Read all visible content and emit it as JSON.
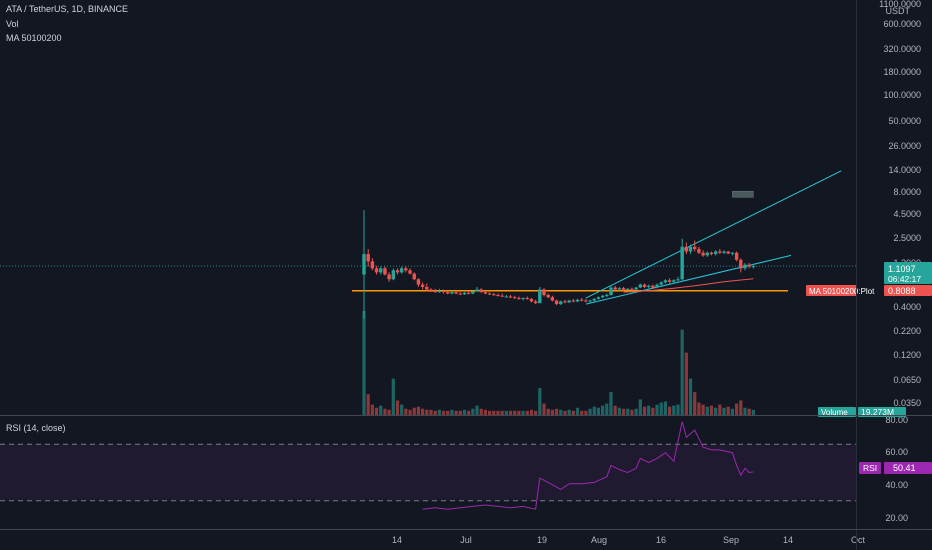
{
  "header": {
    "symbol": "ATA / TetherUS, 1D, BINANCE",
    "vol_label": "Vol",
    "ma_label": "MA 50100200"
  },
  "rsi_legend": "RSI (14, close)",
  "price_axis": {
    "currency": "USDT",
    "ticks": [
      "1100.0000",
      "600.0000",
      "320.0000",
      "180.0000",
      "100.0000",
      "50.0000",
      "26.0000",
      "14.0000",
      "8.0000",
      "4.5000",
      "2.5000",
      "1.2000",
      "0.4000",
      "0.2200",
      "0.1200",
      "0.0650",
      "0.0350"
    ]
  },
  "badges": {
    "price_value": "1.1097",
    "price_countdown": "06:42:17",
    "ma_name": "MA 50100200:Plot",
    "ma_value": "0.8088",
    "volume_name": "Volume",
    "volume_value": "19.273M",
    "rsi_name": "RSI",
    "rsi_value": "50.41"
  },
  "rsi_axis": {
    "ticks": [
      "80.00",
      "60.00",
      "40.00",
      "20.00"
    ]
  },
  "time_axis": {
    "ticks": [
      "14",
      "Jul",
      "19",
      "Aug",
      "16",
      "Sep",
      "14",
      "Oct"
    ]
  },
  "colors": {
    "background": "#131722",
    "up": "#26a69a",
    "down": "#ef5350",
    "trendline": "#26c6da",
    "support": "#ff9800",
    "ma": "#ef5350",
    "rsi_line": "#9c27b0",
    "rsi_band": "#2a1e3d"
  },
  "chart_data": {
    "type": "candlestick",
    "price_scale": "log",
    "x_domain": [
      "2021-06-09",
      "2021-10-05"
    ],
    "ohlc": [
      [
        "2021-06-09",
        0.9,
        4.5,
        0.3,
        1.5
      ],
      [
        "2021-06-10",
        1.5,
        1.7,
        1.1,
        1.25
      ],
      [
        "2021-06-11",
        1.25,
        1.35,
        1.0,
        1.05
      ],
      [
        "2021-06-12",
        1.05,
        1.12,
        0.9,
        0.95
      ],
      [
        "2021-06-13",
        0.95,
        1.1,
        0.9,
        1.05
      ],
      [
        "2021-06-14",
        1.05,
        1.1,
        0.88,
        0.9
      ],
      [
        "2021-06-15",
        0.9,
        0.95,
        0.75,
        0.8
      ],
      [
        "2021-06-16",
        0.8,
        1.05,
        0.78,
        1.0
      ],
      [
        "2021-06-17",
        1.0,
        1.05,
        0.9,
        0.95
      ],
      [
        "2021-06-18",
        0.95,
        1.1,
        0.92,
        1.05
      ],
      [
        "2021-06-19",
        1.05,
        1.1,
        0.95,
        1.0
      ],
      [
        "2021-06-20",
        1.0,
        1.05,
        0.9,
        0.92
      ],
      [
        "2021-06-21",
        0.92,
        0.95,
        0.78,
        0.8
      ],
      [
        "2021-06-22",
        0.8,
        0.82,
        0.66,
        0.7
      ],
      [
        "2021-06-23",
        0.7,
        0.74,
        0.62,
        0.66
      ],
      [
        "2021-06-24",
        0.66,
        0.72,
        0.6,
        0.62
      ],
      [
        "2021-06-25",
        0.62,
        0.64,
        0.58,
        0.6
      ],
      [
        "2021-06-26",
        0.6,
        0.63,
        0.57,
        0.58
      ],
      [
        "2021-06-27",
        0.58,
        0.63,
        0.57,
        0.6
      ],
      [
        "2021-06-28",
        0.6,
        0.62,
        0.56,
        0.58
      ],
      [
        "2021-06-29",
        0.58,
        0.6,
        0.55,
        0.56
      ],
      [
        "2021-06-30",
        0.56,
        0.6,
        0.55,
        0.58
      ],
      [
        "2021-07-01",
        0.58,
        0.6,
        0.55,
        0.56
      ],
      [
        "2021-07-02",
        0.56,
        0.58,
        0.54,
        0.55
      ],
      [
        "2021-07-03",
        0.55,
        0.58,
        0.54,
        0.57
      ],
      [
        "2021-07-04",
        0.57,
        0.6,
        0.55,
        0.56
      ],
      [
        "2021-07-05",
        0.56,
        0.6,
        0.55,
        0.59
      ],
      [
        "2021-07-06",
        0.59,
        0.66,
        0.58,
        0.62
      ],
      [
        "2021-07-07",
        0.62,
        0.64,
        0.57,
        0.58
      ],
      [
        "2021-07-08",
        0.58,
        0.6,
        0.55,
        0.56
      ],
      [
        "2021-07-09",
        0.56,
        0.58,
        0.54,
        0.55
      ],
      [
        "2021-07-10",
        0.55,
        0.57,
        0.53,
        0.54
      ],
      [
        "2021-07-11",
        0.54,
        0.56,
        0.52,
        0.53
      ],
      [
        "2021-07-12",
        0.53,
        0.56,
        0.52,
        0.52
      ],
      [
        "2021-07-13",
        0.52,
        0.54,
        0.51,
        0.52
      ],
      [
        "2021-07-14",
        0.52,
        0.54,
        0.5,
        0.51
      ],
      [
        "2021-07-15",
        0.51,
        0.53,
        0.49,
        0.5
      ],
      [
        "2021-07-16",
        0.5,
        0.52,
        0.48,
        0.49
      ],
      [
        "2021-07-17",
        0.49,
        0.51,
        0.47,
        0.5
      ],
      [
        "2021-07-18",
        0.5,
        0.52,
        0.48,
        0.49
      ],
      [
        "2021-07-19",
        0.49,
        0.5,
        0.45,
        0.46
      ],
      [
        "2021-07-20",
        0.46,
        0.48,
        0.43,
        0.44
      ],
      [
        "2021-07-21",
        0.44,
        0.66,
        0.44,
        0.62
      ],
      [
        "2021-07-22",
        0.62,
        0.64,
        0.52,
        0.54
      ],
      [
        "2021-07-23",
        0.54,
        0.56,
        0.5,
        0.51
      ],
      [
        "2021-07-24",
        0.51,
        0.53,
        0.46,
        0.47
      ],
      [
        "2021-07-25",
        0.47,
        0.48,
        0.42,
        0.43
      ],
      [
        "2021-07-26",
        0.43,
        0.47,
        0.42,
        0.46
      ],
      [
        "2021-07-27",
        0.46,
        0.48,
        0.44,
        0.45
      ],
      [
        "2021-07-28",
        0.45,
        0.48,
        0.44,
        0.47
      ],
      [
        "2021-07-29",
        0.47,
        0.49,
        0.45,
        0.46
      ],
      [
        "2021-07-30",
        0.46,
        0.49,
        0.45,
        0.48
      ],
      [
        "2021-07-31",
        0.48,
        0.5,
        0.46,
        0.47
      ],
      [
        "2021-08-01",
        0.47,
        0.49,
        0.45,
        0.46
      ],
      [
        "2021-08-02",
        0.46,
        0.48,
        0.44,
        0.47
      ],
      [
        "2021-08-03",
        0.47,
        0.5,
        0.46,
        0.49
      ],
      [
        "2021-08-04",
        0.49,
        0.52,
        0.48,
        0.51
      ],
      [
        "2021-08-05",
        0.51,
        0.54,
        0.5,
        0.53
      ],
      [
        "2021-08-06",
        0.53,
        0.56,
        0.51,
        0.54
      ],
      [
        "2021-08-07",
        0.54,
        0.68,
        0.53,
        0.65
      ],
      [
        "2021-08-08",
        0.65,
        0.68,
        0.6,
        0.62
      ],
      [
        "2021-08-09",
        0.62,
        0.66,
        0.6,
        0.64
      ],
      [
        "2021-08-10",
        0.64,
        0.66,
        0.6,
        0.61
      ],
      [
        "2021-08-11",
        0.61,
        0.64,
        0.6,
        0.63
      ],
      [
        "2021-08-12",
        0.63,
        0.65,
        0.6,
        0.62
      ],
      [
        "2021-08-13",
        0.62,
        0.66,
        0.61,
        0.65
      ],
      [
        "2021-08-14",
        0.65,
        0.72,
        0.64,
        0.7
      ],
      [
        "2021-08-15",
        0.7,
        0.72,
        0.64,
        0.66
      ],
      [
        "2021-08-16",
        0.66,
        0.7,
        0.64,
        0.68
      ],
      [
        "2021-08-17",
        0.68,
        0.7,
        0.63,
        0.65
      ],
      [
        "2021-08-18",
        0.65,
        0.72,
        0.64,
        0.7
      ],
      [
        "2021-08-19",
        0.7,
        0.76,
        0.68,
        0.74
      ],
      [
        "2021-08-20",
        0.74,
        0.8,
        0.72,
        0.78
      ],
      [
        "2021-08-21",
        0.78,
        0.82,
        0.72,
        0.75
      ],
      [
        "2021-08-22",
        0.75,
        0.8,
        0.73,
        0.78
      ],
      [
        "2021-08-23",
        0.78,
        0.85,
        0.76,
        0.8
      ],
      [
        "2021-08-24",
        0.8,
        2.2,
        0.78,
        1.8
      ],
      [
        "2021-08-25",
        1.8,
        2.0,
        1.5,
        1.6
      ],
      [
        "2021-08-26",
        1.6,
        1.9,
        1.5,
        1.8
      ],
      [
        "2021-08-27",
        1.8,
        2.1,
        1.6,
        1.7
      ],
      [
        "2021-08-28",
        1.7,
        1.8,
        1.5,
        1.55
      ],
      [
        "2021-08-29",
        1.55,
        1.65,
        1.4,
        1.45
      ],
      [
        "2021-08-30",
        1.45,
        1.6,
        1.4,
        1.55
      ],
      [
        "2021-08-31",
        1.55,
        1.6,
        1.45,
        1.5
      ],
      [
        "2021-09-01",
        1.5,
        1.65,
        1.45,
        1.6
      ],
      [
        "2021-09-02",
        1.6,
        1.7,
        1.5,
        1.55
      ],
      [
        "2021-09-03",
        1.55,
        1.65,
        1.5,
        1.6
      ],
      [
        "2021-09-04",
        1.6,
        1.62,
        1.5,
        1.52
      ],
      [
        "2021-09-05",
        1.52,
        1.58,
        1.45,
        1.55
      ],
      [
        "2021-09-06",
        1.55,
        1.6,
        1.25,
        1.3
      ],
      [
        "2021-09-07",
        1.3,
        1.35,
        0.95,
        1.05
      ],
      [
        "2021-09-08",
        1.05,
        1.2,
        1.0,
        1.15
      ],
      [
        "2021-09-09",
        1.15,
        1.2,
        1.05,
        1.1
      ],
      [
        "2021-09-10",
        1.1,
        1.18,
        1.05,
        1.1097
      ]
    ],
    "volume": [
      [
        0.0,
        1
      ],
      [
        0.0,
        0
      ],
      [
        0.0,
        0
      ],
      [
        0.0,
        0
      ],
      [
        0.0,
        1
      ],
      [
        0.0,
        0
      ],
      [
        0.0,
        0
      ],
      [
        0.0,
        1
      ],
      [
        0.0,
        0
      ],
      [
        0.0,
        1
      ],
      [
        0.0,
        0
      ],
      [
        0.0,
        0
      ],
      [
        0.0,
        0
      ],
      [
        0.0,
        0
      ],
      [
        0.0,
        0
      ],
      [
        0.0,
        0
      ],
      [
        0.0,
        0
      ],
      [
        0.0,
        0
      ],
      [
        0.0,
        1
      ],
      [
        0.0,
        0
      ],
      [
        0.0,
        0
      ],
      [
        0.0,
        1
      ],
      [
        0.0,
        0
      ],
      [
        0.0,
        0
      ],
      [
        0.0,
        1
      ],
      [
        0.0,
        0
      ],
      [
        0.0,
        1
      ],
      [
        0.0,
        1
      ],
      [
        0.0,
        0
      ],
      [
        0.0,
        0
      ],
      [
        0.0,
        0
      ],
      [
        0.0,
        0
      ],
      [
        0.0,
        0
      ],
      [
        0.0,
        0
      ],
      [
        0.0,
        1
      ],
      [
        0.0,
        0
      ],
      [
        0.0,
        0
      ],
      [
        0.0,
        0
      ],
      [
        0.0,
        1
      ],
      [
        0.0,
        0
      ],
      [
        0.0,
        0
      ],
      [
        0.0,
        0
      ],
      [
        0.0,
        1
      ],
      [
        0.0,
        0
      ],
      [
        0.0,
        0
      ],
      [
        0.0,
        0
      ],
      [
        0.0,
        0
      ],
      [
        0.0,
        1
      ],
      [
        0.0,
        0
      ],
      [
        0.0,
        1
      ],
      [
        0.0,
        0
      ],
      [
        0.0,
        1
      ],
      [
        0.0,
        0
      ],
      [
        0.0,
        0
      ],
      [
        0.0,
        1
      ],
      [
        0.0,
        1
      ],
      [
        0.0,
        1
      ],
      [
        0.0,
        1
      ],
      [
        0.0,
        1
      ],
      [
        0.0,
        1
      ],
      [
        0.0,
        0
      ],
      [
        0.0,
        1
      ],
      [
        0.0,
        0
      ],
      [
        0.0,
        1
      ],
      [
        0.0,
        0
      ],
      [
        0.0,
        1
      ],
      [
        0.0,
        1
      ],
      [
        0.0,
        0
      ],
      [
        0.0,
        1
      ],
      [
        0.0,
        0
      ],
      [
        0.0,
        1
      ],
      [
        0.0,
        1
      ],
      [
        0.0,
        1
      ],
      [
        0.0,
        0
      ],
      [
        0.0,
        1
      ],
      [
        0.0,
        1
      ],
      [
        0.0,
        1
      ],
      [
        0.0,
        0
      ],
      [
        0.0,
        1
      ],
      [
        0.0,
        0
      ],
      [
        0.0,
        0
      ],
      [
        0.0,
        0
      ],
      [
        0.0,
        1
      ],
      [
        0.0,
        0
      ],
      [
        0.0,
        1
      ],
      [
        0.0,
        0
      ],
      [
        0.0,
        1
      ],
      [
        0.0,
        0
      ],
      [
        0.0,
        1
      ],
      [
        0.0,
        0
      ],
      [
        0.0,
        0
      ],
      [
        0.0,
        1
      ],
      [
        0.0,
        0
      ],
      [
        0.0,
        1
      ]
    ],
    "volume_values": [
      100,
      20,
      10,
      7,
      9,
      6,
      5,
      35,
      14,
      10,
      6,
      5,
      7,
      8,
      6,
      5,
      5,
      4,
      5,
      4,
      4,
      5,
      4,
      4,
      5,
      4,
      6,
      9,
      6,
      5,
      4,
      4,
      4,
      4,
      4,
      4,
      4,
      4,
      4,
      4,
      5,
      4,
      26,
      11,
      6,
      5,
      6,
      5,
      4,
      5,
      4,
      7,
      4,
      4,
      6,
      8,
      7,
      9,
      11,
      22,
      9,
      7,
      6,
      6,
      5,
      6,
      15,
      8,
      9,
      7,
      10,
      12,
      13,
      8,
      9,
      10,
      82,
      60,
      35,
      22,
      12,
      10,
      8,
      9,
      7,
      10,
      7,
      8,
      6,
      11,
      14,
      7,
      6,
      5
    ],
    "rsi": [
      [
        "2021-06-23",
        24
      ],
      [
        "2021-06-26",
        25
      ],
      [
        "2021-06-29",
        24
      ],
      [
        "2021-07-02",
        25
      ],
      [
        "2021-07-05",
        26
      ],
      [
        "2021-07-08",
        27
      ],
      [
        "2021-07-11",
        26
      ],
      [
        "2021-07-14",
        25
      ],
      [
        "2021-07-17",
        26
      ],
      [
        "2021-07-20",
        24
      ],
      [
        "2021-07-21",
        46
      ],
      [
        "2021-07-23",
        43
      ],
      [
        "2021-07-26",
        38
      ],
      [
        "2021-07-28",
        42
      ],
      [
        "2021-07-31",
        42
      ],
      [
        "2021-08-03",
        43
      ],
      [
        "2021-08-06",
        47
      ],
      [
        "2021-08-07",
        55
      ],
      [
        "2021-08-09",
        52
      ],
      [
        "2021-08-11",
        50
      ],
      [
        "2021-08-13",
        53
      ],
      [
        "2021-08-14",
        60
      ],
      [
        "2021-08-16",
        57
      ],
      [
        "2021-08-18",
        60
      ],
      [
        "2021-08-20",
        64
      ],
      [
        "2021-08-22",
        58
      ],
      [
        "2021-08-24",
        86
      ],
      [
        "2021-08-25",
        75
      ],
      [
        "2021-08-27",
        80
      ],
      [
        "2021-08-29",
        68
      ],
      [
        "2021-08-31",
        66
      ],
      [
        "2021-09-02",
        66
      ],
      [
        "2021-09-05",
        64
      ],
      [
        "2021-09-06",
        55
      ],
      [
        "2021-09-07",
        48
      ],
      [
        "2021-09-08",
        53
      ],
      [
        "2021-09-09",
        50
      ],
      [
        "2021-09-10",
        50.41
      ]
    ],
    "ma": [
      [
        "2021-08-10",
        0.58
      ],
      [
        "2021-08-16",
        0.6
      ],
      [
        "2021-08-22",
        0.64
      ],
      [
        "2021-08-28",
        0.69
      ],
      [
        "2021-09-03",
        0.75
      ],
      [
        "2021-09-10",
        0.8088
      ]
    ],
    "support_level": 0.6,
    "trendlines": [
      {
        "from": [
          "2021-08-01",
          0.5
        ],
        "to": [
          "2021-10-01",
          12.0
        ]
      },
      {
        "from": [
          "2021-08-01",
          0.43
        ],
        "to": [
          "2021-09-19",
          1.45
        ]
      }
    ],
    "ghost_box": {
      "from": [
        "2021-09-05",
        7.2
      ],
      "to": [
        "2021-09-10",
        6.2
      ]
    },
    "rsi_band": [
      30,
      70
    ],
    "rsi_range": [
      10,
      90
    ]
  }
}
